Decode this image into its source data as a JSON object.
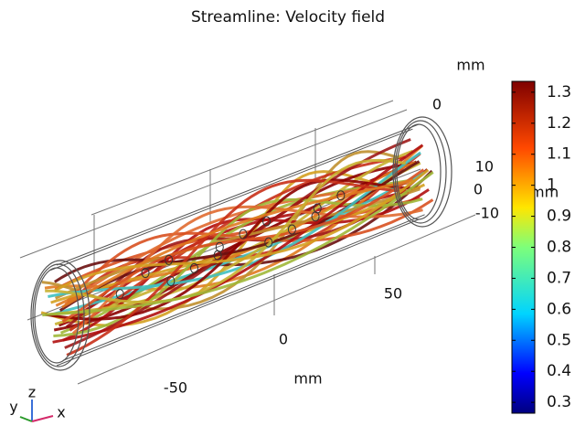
{
  "title": "Streamline: Velocity field",
  "axes": {
    "x": {
      "unit": "mm",
      "ticks": [
        -50,
        0,
        50
      ]
    },
    "y": {
      "unit": "mm",
      "ticks": [
        0
      ]
    },
    "z": {
      "unit": "mm",
      "ticks": [
        10,
        0,
        -10
      ]
    }
  },
  "colorbar": {
    "lim": [
      0.265,
      1.335
    ],
    "ticks": [
      0.3,
      0.4,
      0.5,
      0.6,
      0.7,
      0.8,
      0.9,
      1,
      1.1,
      1.2,
      1.3
    ]
  },
  "triad": {
    "x": "x",
    "y": "y",
    "z": "z"
  }
}
